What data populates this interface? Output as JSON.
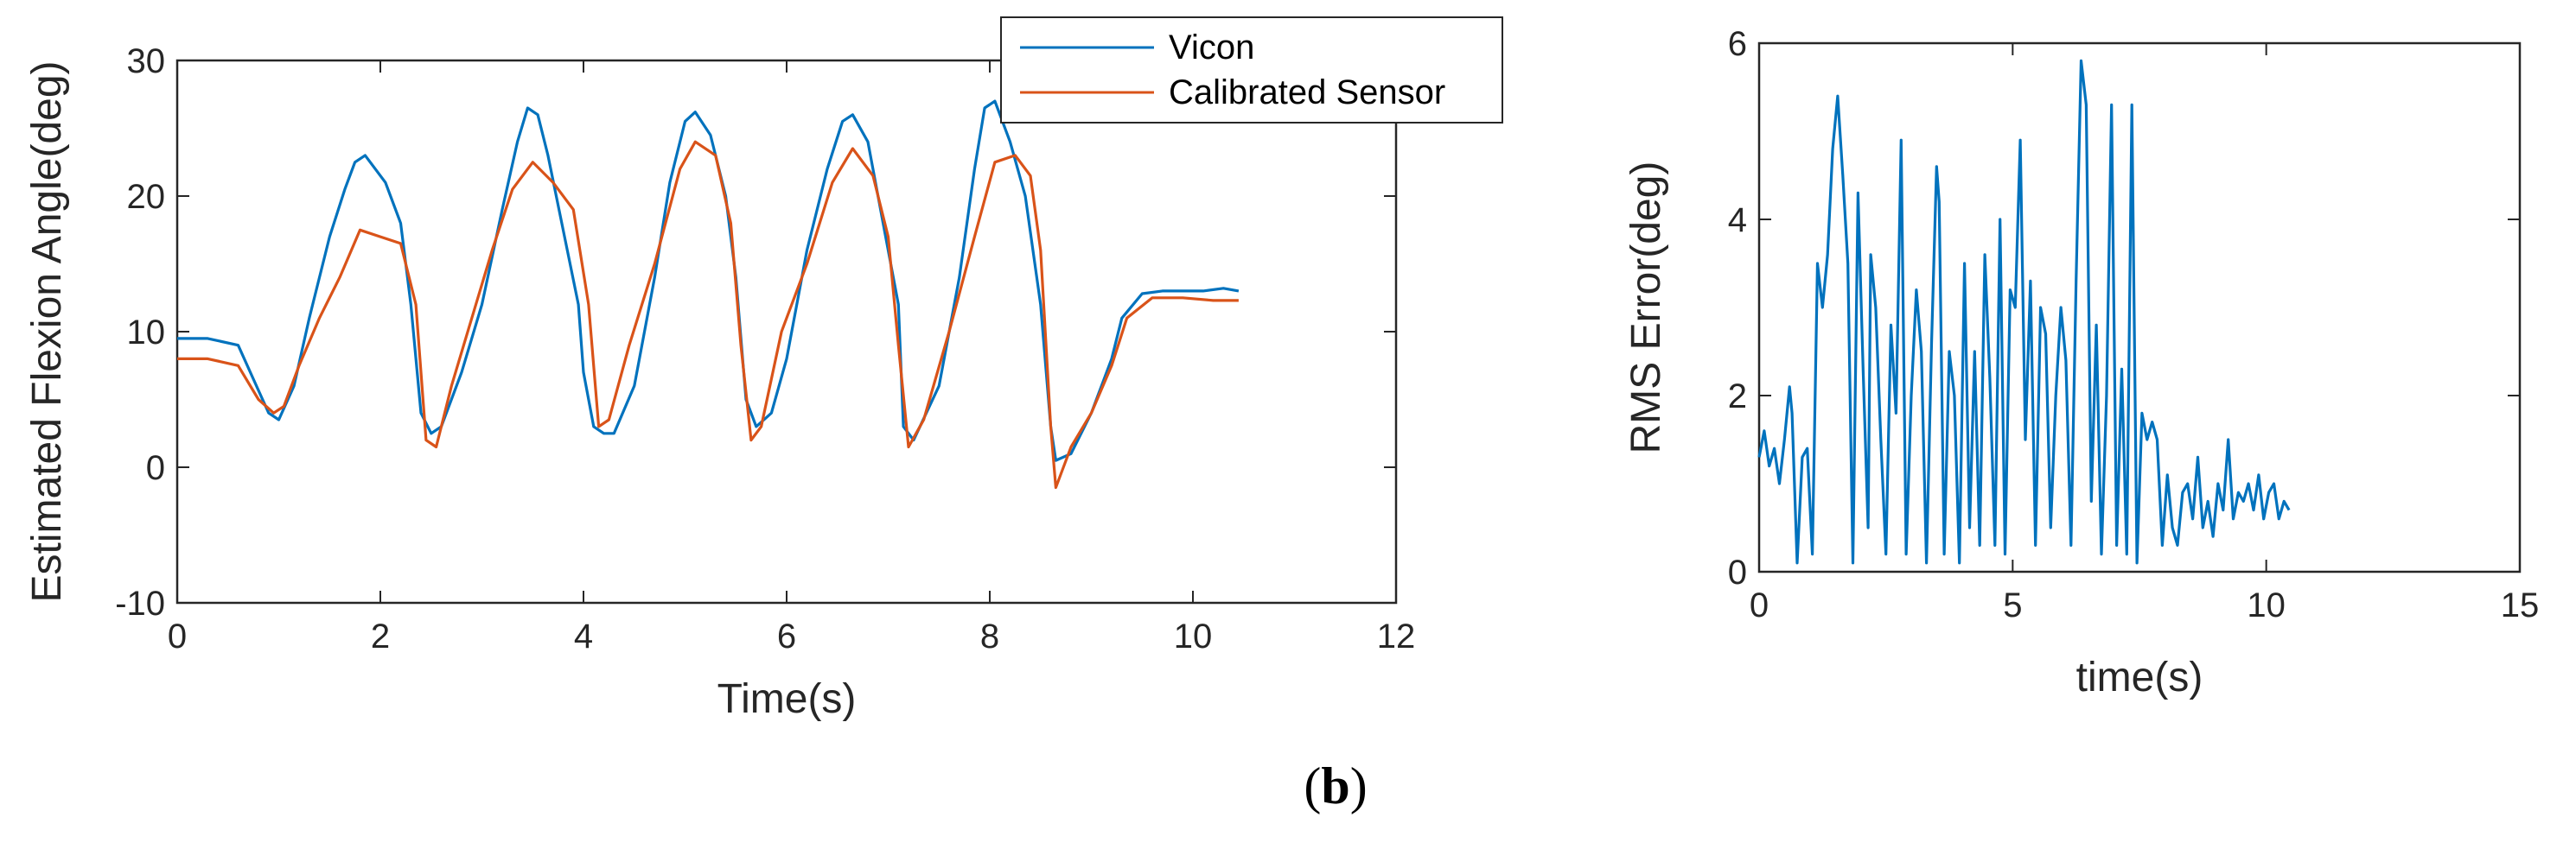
{
  "chart_data": [
    {
      "type": "line",
      "title": "",
      "xlabel": "Time(s)",
      "ylabel": "Estimated Flexion Angle(deg)",
      "xlim": [
        0,
        12
      ],
      "ylim": [
        -10,
        30
      ],
      "xticks": [
        0,
        2,
        4,
        6,
        8,
        10,
        12
      ],
      "yticks": [
        -10,
        0,
        10,
        20,
        30
      ],
      "legend_position": "top-right (outside)",
      "series": [
        {
          "name": "Vicon",
          "color": "#0072BD",
          "x": [
            0,
            0.3,
            0.6,
            0.75,
            0.9,
            1.0,
            1.15,
            1.3,
            1.5,
            1.65,
            1.75,
            1.85,
            1.95,
            2.05,
            2.2,
            2.3,
            2.4,
            2.5,
            2.6,
            2.8,
            3.0,
            3.2,
            3.35,
            3.45,
            3.55,
            3.65,
            3.8,
            3.95,
            4.0,
            4.1,
            4.2,
            4.3,
            4.5,
            4.7,
            4.85,
            5.0,
            5.1,
            5.25,
            5.4,
            5.5,
            5.6,
            5.7,
            5.85,
            6.0,
            6.2,
            6.4,
            6.55,
            6.65,
            6.8,
            6.95,
            7.1,
            7.15,
            7.25,
            7.5,
            7.7,
            7.85,
            7.95,
            8.05,
            8.2,
            8.35,
            8.5,
            8.6,
            8.65,
            8.8,
            9.0,
            9.2,
            9.3,
            9.5,
            9.7,
            9.9,
            10.1,
            10.3,
            10.45
          ],
          "values": [
            9.5,
            9.5,
            9.0,
            6.5,
            4.0,
            3.5,
            6.0,
            11.0,
            17.0,
            20.5,
            22.5,
            23.0,
            22.0,
            21.0,
            18.0,
            12.0,
            4.0,
            2.5,
            3.0,
            7.0,
            12.0,
            19.0,
            24.0,
            26.5,
            26.0,
            23.0,
            17.5,
            12.0,
            7.0,
            3.0,
            2.5,
            2.5,
            6.0,
            14.0,
            21.0,
            25.5,
            26.2,
            24.5,
            20.0,
            14.0,
            5.0,
            3.0,
            4.0,
            8.0,
            16.0,
            22.0,
            25.5,
            26.0,
            24.0,
            18.0,
            12.0,
            3.0,
            2.0,
            6.0,
            14.0,
            22.0,
            26.5,
            27.0,
            24.0,
            20.0,
            12.0,
            3.0,
            0.5,
            1.0,
            4.0,
            8.0,
            11.0,
            12.8,
            13.0,
            13.0,
            13.0,
            13.2,
            13.0
          ]
        },
        {
          "name": "Calibrated Sensor",
          "color": "#D95319",
          "x": [
            0,
            0.3,
            0.6,
            0.8,
            0.95,
            1.05,
            1.2,
            1.4,
            1.6,
            1.8,
            2.0,
            2.2,
            2.35,
            2.45,
            2.55,
            2.7,
            2.9,
            3.1,
            3.3,
            3.5,
            3.7,
            3.9,
            4.05,
            4.15,
            4.25,
            4.45,
            4.7,
            4.95,
            5.1,
            5.3,
            5.45,
            5.55,
            5.65,
            5.75,
            5.95,
            6.2,
            6.45,
            6.65,
            6.85,
            7.0,
            7.1,
            7.2,
            7.35,
            7.6,
            7.85,
            8.05,
            8.25,
            8.4,
            8.5,
            8.6,
            8.65,
            8.8,
            9.0,
            9.2,
            9.35,
            9.6,
            9.9,
            10.2,
            10.45
          ],
          "values": [
            8.0,
            8.0,
            7.5,
            5.0,
            4.0,
            4.5,
            7.5,
            11.0,
            14.0,
            17.5,
            17.0,
            16.5,
            12.0,
            2.0,
            1.5,
            6.0,
            11.0,
            16.0,
            20.5,
            22.5,
            21.0,
            19.0,
            12.0,
            3.0,
            3.5,
            9.0,
            15.0,
            22.0,
            24.0,
            23.0,
            18.0,
            9.0,
            2.0,
            3.0,
            10.0,
            15.0,
            21.0,
            23.5,
            21.5,
            17.0,
            9.0,
            1.5,
            3.5,
            10.0,
            17.0,
            22.5,
            23.0,
            21.5,
            16.0,
            3.0,
            -1.5,
            1.5,
            4.0,
            7.5,
            11.0,
            12.5,
            12.5,
            12.3,
            12.3
          ]
        }
      ]
    },
    {
      "type": "line",
      "title": "",
      "xlabel": "time(s)",
      "ylabel": "RMS Error(deg)",
      "xlim": [
        0,
        15
      ],
      "ylim": [
        0,
        6
      ],
      "xticks": [
        0,
        5,
        10,
        15
      ],
      "yticks": [
        0,
        2,
        4,
        6
      ],
      "series": [
        {
          "name": "RMS Error",
          "color": "#0072BD",
          "x": [
            0,
            0.1,
            0.2,
            0.3,
            0.4,
            0.5,
            0.6,
            0.65,
            0.75,
            0.85,
            0.95,
            1.05,
            1.15,
            1.25,
            1.35,
            1.45,
            1.55,
            1.65,
            1.75,
            1.85,
            1.95,
            2.05,
            2.15,
            2.2,
            2.3,
            2.4,
            2.5,
            2.6,
            2.7,
            2.8,
            2.9,
            3.0,
            3.1,
            3.2,
            3.3,
            3.4,
            3.5,
            3.55,
            3.65,
            3.75,
            3.85,
            3.95,
            4.05,
            4.15,
            4.25,
            4.35,
            4.45,
            4.55,
            4.65,
            4.75,
            4.85,
            4.95,
            5.05,
            5.15,
            5.25,
            5.35,
            5.45,
            5.55,
            5.65,
            5.75,
            5.85,
            5.95,
            6.05,
            6.15,
            6.25,
            6.35,
            6.45,
            6.55,
            6.65,
            6.75,
            6.85,
            6.95,
            7.05,
            7.15,
            7.25,
            7.35,
            7.45,
            7.55,
            7.65,
            7.75,
            7.85,
            7.95,
            8.05,
            8.15,
            8.25,
            8.35,
            8.45,
            8.55,
            8.65,
            8.75,
            8.85,
            8.95,
            9.05,
            9.15,
            9.25,
            9.35,
            9.45,
            9.55,
            9.65,
            9.75,
            9.85,
            9.95,
            10.05,
            10.15,
            10.25,
            10.35,
            10.45
          ],
          "values": [
            1.3,
            1.6,
            1.2,
            1.4,
            1.0,
            1.5,
            2.1,
            1.8,
            0.1,
            1.3,
            1.4,
            0.2,
            3.5,
            3.0,
            3.6,
            4.8,
            5.4,
            4.5,
            3.5,
            0.1,
            4.3,
            2.3,
            0.5,
            3.6,
            3.0,
            1.5,
            0.2,
            2.8,
            1.8,
            4.9,
            0.2,
            2.0,
            3.2,
            2.5,
            0.1,
            2.6,
            4.6,
            4.2,
            0.2,
            2.5,
            2.0,
            0.1,
            3.5,
            0.5,
            2.5,
            0.3,
            3.6,
            2.2,
            0.3,
            4.0,
            0.2,
            3.2,
            3.0,
            4.9,
            1.5,
            3.3,
            0.3,
            3.0,
            2.7,
            0.5,
            2.0,
            3.0,
            2.4,
            0.3,
            3.3,
            5.8,
            5.3,
            0.8,
            2.8,
            0.2,
            2.0,
            5.3,
            0.3,
            2.3,
            0.2,
            5.3,
            0.1,
            1.8,
            1.5,
            1.7,
            1.5,
            0.3,
            1.1,
            0.5,
            0.3,
            0.9,
            1.0,
            0.6,
            1.3,
            0.5,
            0.8,
            0.4,
            1.0,
            0.7,
            1.5,
            0.6,
            0.9,
            0.8,
            1.0,
            0.7,
            1.1,
            0.6,
            0.9,
            1.0,
            0.6,
            0.8,
            0.7
          ]
        }
      ]
    }
  ],
  "caption": {
    "open": "(",
    "letter": "b",
    "close": ")"
  }
}
